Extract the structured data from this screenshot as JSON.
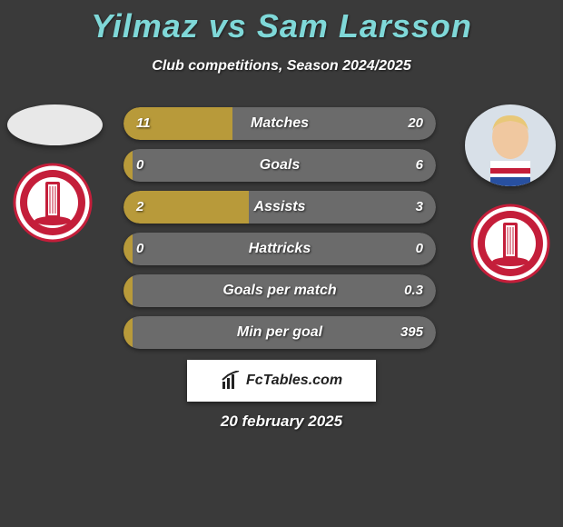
{
  "title": "Yilmaz vs Sam Larsson",
  "subtitle": "Club competitions, Season 2024/2025",
  "date": "20 february 2025",
  "brand": "FcTables.com",
  "colors": {
    "title": "#7fd8d8",
    "background": "#3a3a3a",
    "bar_left": "#b89a3a",
    "bar_right": "#6b6b6b",
    "club_red": "#c41e3a",
    "club_white": "#ffffff"
  },
  "player_left": {
    "name": "Yilmaz",
    "photo_bg": "#e8e8e8"
  },
  "player_right": {
    "name": "Sam Larsson",
    "hair": "#e8c878",
    "skin": "#f0c8a0",
    "jersey_top": "#ffffff",
    "jersey_stripe": "#c41e3a",
    "jersey_blue": "#2850a0"
  },
  "stats": [
    {
      "label": "Matches",
      "left_val": "11",
      "right_val": "20",
      "left_pct": 35,
      "right_pct": 65
    },
    {
      "label": "Goals",
      "left_val": "0",
      "right_val": "6",
      "left_pct": 3,
      "right_pct": 97
    },
    {
      "label": "Assists",
      "left_val": "2",
      "right_val": "3",
      "left_pct": 40,
      "right_pct": 60
    },
    {
      "label": "Hattricks",
      "left_val": "0",
      "right_val": "0",
      "left_pct": 3,
      "right_pct": 97
    },
    {
      "label": "Goals per match",
      "left_val": "",
      "right_val": "0.3",
      "left_pct": 3,
      "right_pct": 97
    },
    {
      "label": "Min per goal",
      "left_val": "",
      "right_val": "395",
      "left_pct": 3,
      "right_pct": 97
    }
  ]
}
